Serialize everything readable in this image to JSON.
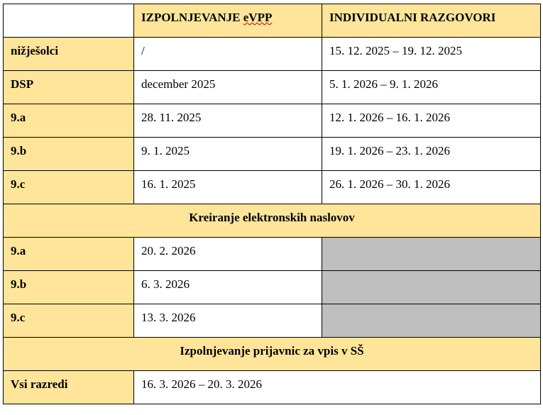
{
  "header": {
    "col1": "",
    "col2_prefix": "IZPOLNJEVANJE ",
    "col2_flagged": "eVPP",
    "col3": "INDIVIDUALNI RAZGOVORI"
  },
  "rows": [
    {
      "label": "nižješolci",
      "evpp": "/",
      "razgovori": "15. 12. 2025 – 19. 12. 2025"
    },
    {
      "label": "DSP",
      "evpp": "december 2025",
      "razgovori": "5. 1. 2026 – 9. 1. 2026"
    },
    {
      "label": "9.a",
      "evpp": "28. 11. 2025",
      "razgovori": "12. 1. 2026 – 16. 1. 2026"
    },
    {
      "label": "9.b",
      "evpp": "9. 1. 2025",
      "razgovori": "19. 1. 2026 – 23. 1. 2026"
    },
    {
      "label": "9.c",
      "evpp": "16. 1. 2025",
      "razgovori": "26. 1. 2026 – 30. 1. 2026"
    }
  ],
  "section_email": {
    "title": "Kreiranje elektronskih naslovov",
    "rows": [
      {
        "label": "9.a",
        "date": "20. 2. 2026"
      },
      {
        "label": "9.b",
        "date": "6. 3. 2026"
      },
      {
        "label": "9.c",
        "date": "13. 3. 2026"
      }
    ]
  },
  "section_applications": {
    "title": "Izpolnjevanje prijavnic za vpis v SŠ",
    "rows": [
      {
        "label": "Vsi razredi",
        "date": "16. 3. 2026 – 20. 3. 2026"
      }
    ]
  },
  "colors": {
    "header_fill": "#FFE599",
    "empty_fill": "#BFBFBF"
  }
}
